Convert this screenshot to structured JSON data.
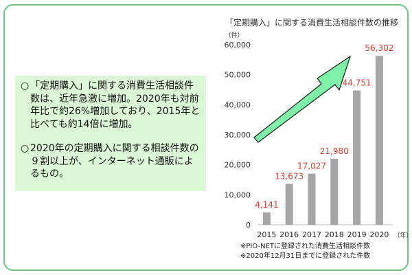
{
  "summary": {
    "bullets": [
      {
        "mark": "○",
        "text": "「定期購入」に関する消費生活相談件数は、近年急激に増加。2020年も対前年比で約26%増加しており、2015年と比べても約14倍に増加。"
      },
      {
        "mark": "○",
        "text": "2020年の定期購入に関する相談件数の９割以上が、インターネット通販によるもの。"
      }
    ]
  },
  "notes": [
    "※PIO-NETに登録された消費生活相談件数",
    "※2020年12月31日までに登録された件数"
  ],
  "colors": {
    "frame": "#6cc47c",
    "summary_bg": "#dcf7d6",
    "bar": "#a6a6a6",
    "data_label": "#e83a2e",
    "arrow_fill": "#7ef0a8",
    "arrow_stroke": "#1a1a1a"
  },
  "chart_data": {
    "type": "bar",
    "title": "「定期購入」に関する消費生活相談件数の推移",
    "ylabel": "（件）",
    "xlabel": "（年）",
    "categories": [
      "2015",
      "2016",
      "2017",
      "2018",
      "2019",
      "2020"
    ],
    "values": [
      4141,
      13673,
      17027,
      21980,
      44751,
      56302
    ],
    "value_labels": [
      "4,141",
      "13,673",
      "17,027",
      "21,980",
      "44,751",
      "56,302"
    ],
    "ylim": [
      0,
      60000
    ],
    "yticks": [
      0,
      10000,
      20000,
      30000,
      40000,
      50000,
      60000
    ],
    "ytick_labels": [
      "0",
      "10,000",
      "20,000",
      "30,000",
      "40,000",
      "50,000",
      "60,000"
    ],
    "grid": false,
    "annotation": "upward-trend-arrow"
  }
}
